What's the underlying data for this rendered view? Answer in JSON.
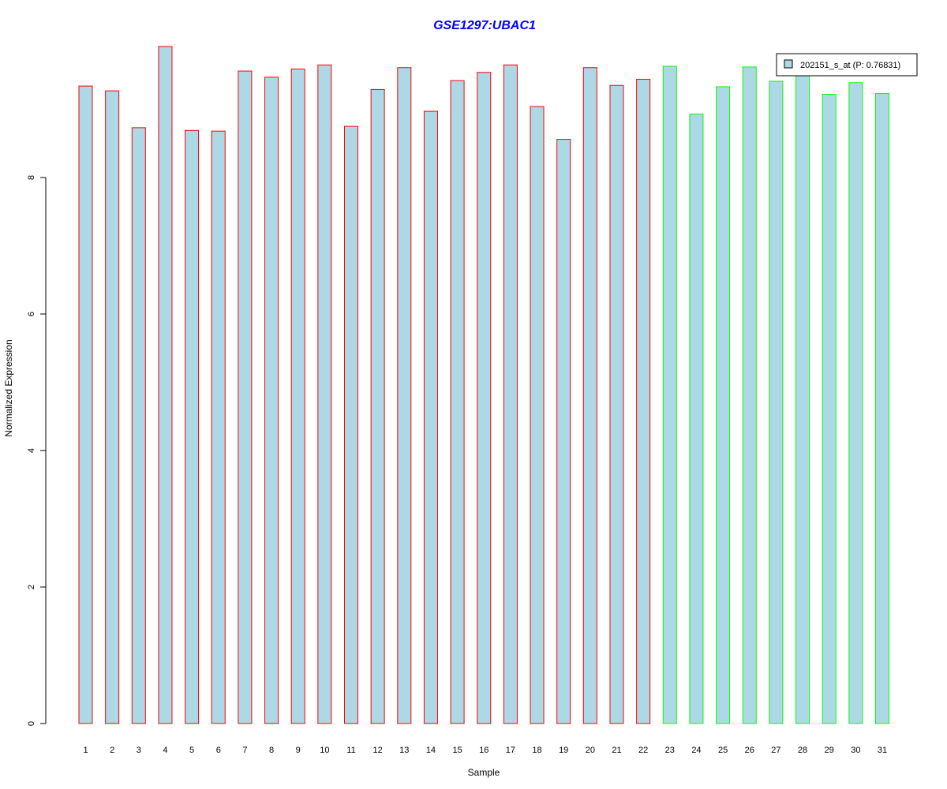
{
  "chart_data": {
    "type": "bar",
    "title": "GSE1297:UBAC1",
    "xlabel": "Sample",
    "ylabel": "Normalized Expression",
    "categories": [
      "1",
      "2",
      "3",
      "4",
      "5",
      "6",
      "7",
      "8",
      "9",
      "10",
      "11",
      "12",
      "13",
      "14",
      "15",
      "16",
      "17",
      "18",
      "19",
      "20",
      "21",
      "22",
      "23",
      "24",
      "25",
      "26",
      "27",
      "28",
      "29",
      "30",
      "31"
    ],
    "values": [
      9.34,
      9.27,
      8.73,
      9.92,
      8.69,
      8.68,
      9.56,
      9.47,
      9.59,
      9.65,
      8.75,
      9.29,
      9.61,
      8.97,
      9.42,
      9.54,
      9.65,
      9.04,
      8.56,
      9.61,
      9.35,
      9.44,
      9.63,
      8.93,
      9.33,
      9.62,
      9.41,
      9.58,
      9.22,
      9.39,
      9.23
    ],
    "groups": [
      "A",
      "A",
      "A",
      "A",
      "A",
      "A",
      "A",
      "A",
      "A",
      "A",
      "A",
      "A",
      "A",
      "A",
      "A",
      "A",
      "A",
      "A",
      "A",
      "A",
      "A",
      "A",
      "B",
      "B",
      "B",
      "B",
      "B",
      "B",
      "B",
      "B",
      "B"
    ],
    "ylim": [
      0,
      10
    ],
    "yticks": [
      0,
      2,
      4,
      6,
      8
    ],
    "grid": false,
    "legend": {
      "label": "202151_s_at (P: 0.76831)",
      "position": "top-right"
    },
    "colors": {
      "fill": "#add8e6",
      "group_A_border": "#ff0000",
      "group_B_border": "#00ff00",
      "title": "#0000ff",
      "axis": "#000000"
    }
  }
}
